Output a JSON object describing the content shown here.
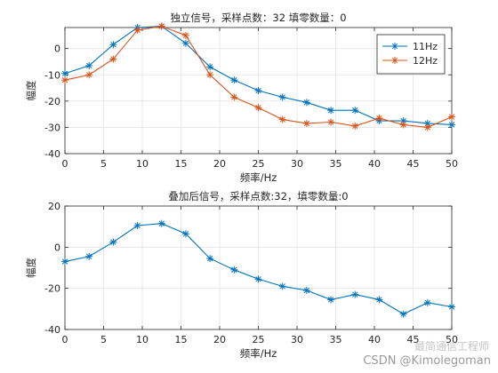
{
  "chart_data": [
    {
      "type": "line",
      "title": "独立信号，采样点数：32 填零数量：0",
      "xlabel": "频率/Hz",
      "ylabel": "幅度",
      "xlim": [
        0,
        50
      ],
      "ylim": [
        -40,
        8
      ],
      "xticks": [
        0,
        5,
        10,
        15,
        20,
        25,
        30,
        35,
        40,
        45,
        50
      ],
      "yticks": [
        -40,
        -30,
        -20,
        -10,
        0
      ],
      "grid": true,
      "legend": "top-right",
      "x": [
        0,
        3.125,
        6.25,
        9.375,
        12.5,
        15.625,
        18.75,
        21.875,
        25,
        28.125,
        31.25,
        34.375,
        37.5,
        40.625,
        43.75,
        46.875,
        50
      ],
      "series": [
        {
          "name": "11Hz",
          "color": "#0072BD",
          "marker": "*",
          "values": [
            -9.5,
            -6.5,
            1.5,
            8.0,
            8.5,
            2.0,
            -7.0,
            -12.0,
            -16.0,
            -18.5,
            -20.5,
            -23.5,
            -23.5,
            -27.5,
            -27.5,
            -28.5,
            -29.0
          ]
        },
        {
          "name": "12Hz",
          "color": "#D95319",
          "marker": "*",
          "values": [
            -12.0,
            -10.0,
            -4.0,
            7.0,
            8.5,
            5.0,
            -10.0,
            -18.5,
            -22.5,
            -27.0,
            -28.5,
            -28.0,
            -29.5,
            -26.5,
            -29.0,
            -30.0,
            -26.0
          ]
        }
      ]
    },
    {
      "type": "line",
      "title": "叠加后信号，采样点数:32，填零数量:0",
      "xlabel": "频率/Hz",
      "ylabel": "幅度",
      "xlim": [
        0,
        50
      ],
      "ylim": [
        -40,
        20
      ],
      "xticks": [
        0,
        5,
        10,
        15,
        20,
        25,
        30,
        35,
        40,
        45,
        50
      ],
      "yticks": [
        -40,
        -20,
        0,
        20
      ],
      "grid": true,
      "x": [
        0,
        3.125,
        6.25,
        9.375,
        12.5,
        15.625,
        18.75,
        21.875,
        25,
        28.125,
        31.25,
        34.375,
        37.5,
        40.625,
        43.75,
        46.875,
        50
      ],
      "series": [
        {
          "color": "#0072BD",
          "marker": "*",
          "values": [
            -7.0,
            -4.5,
            2.5,
            10.5,
            11.5,
            6.5,
            -5.5,
            -11.0,
            -15.5,
            -19.0,
            -21.0,
            -25.5,
            -23.0,
            -25.5,
            -32.5,
            -27.0,
            -29.0
          ]
        }
      ]
    }
  ],
  "watermark": {
    "text": "CSDN @Kimolegoman",
    "overlay": "最简通信工程师"
  }
}
